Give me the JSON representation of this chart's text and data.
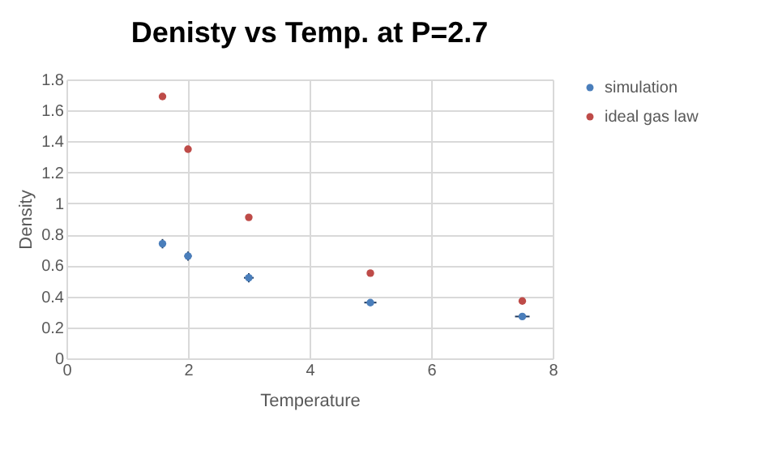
{
  "chart_data": {
    "type": "scatter",
    "title": "Denisty vs Temp. at P=2.7",
    "xlabel": "Temperature",
    "ylabel": "Density",
    "x": [
      1.58,
      2,
      3,
      5,
      7.5
    ],
    "series": [
      {
        "name": "simulation",
        "color": "#4a7ebb",
        "values": [
          0.74,
          0.66,
          0.52,
          0.36,
          0.27
        ],
        "errors": [
          0.03,
          0.03,
          0.03,
          0.02,
          0.02
        ],
        "xerrors": [
          0.05,
          0.06,
          0.08,
          0.1,
          0.12
        ]
      },
      {
        "name": "ideal gas law",
        "color": "#be4b48",
        "values": [
          1.69,
          1.35,
          0.91,
          0.55,
          0.37
        ]
      }
    ],
    "xlim": [
      0,
      8
    ],
    "xticks": [
      0,
      2,
      4,
      6,
      8
    ],
    "ylim": [
      0,
      1.8
    ],
    "yticks": [
      0,
      0.2,
      0.4,
      0.6,
      0.8,
      1,
      1.2,
      1.4,
      1.6,
      1.8
    ],
    "grid": true,
    "legend": "right",
    "marker": "circle"
  }
}
